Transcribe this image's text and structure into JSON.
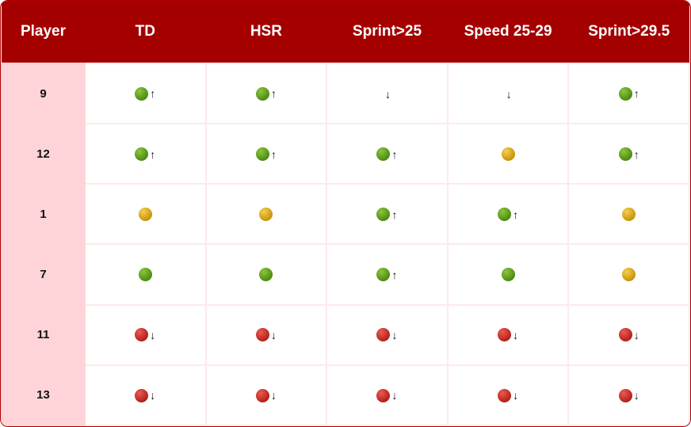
{
  "table": {
    "columns": [
      "Player",
      "TD",
      "HSR",
      "Sprint>25",
      "Speed 25-29",
      "Sprint>29.5"
    ],
    "rows": [
      {
        "player": "9",
        "cells": [
          {
            "status": "green",
            "arrow": "↑"
          },
          {
            "status": "green",
            "arrow": "↑"
          },
          {
            "arrow": "↓"
          },
          {
            "arrow": "↓"
          },
          {
            "status": "green",
            "arrow": "↑"
          }
        ]
      },
      {
        "player": "12",
        "cells": [
          {
            "status": "green",
            "arrow": "↑"
          },
          {
            "status": "green",
            "arrow": "↑"
          },
          {
            "status": "green",
            "arrow": "↑"
          },
          {
            "status": "yellow"
          },
          {
            "status": "green",
            "arrow": "↑"
          }
        ]
      },
      {
        "player": "1",
        "cells": [
          {
            "status": "yellow"
          },
          {
            "status": "yellow"
          },
          {
            "status": "green",
            "arrow": "↑"
          },
          {
            "status": "green",
            "arrow": "↑"
          },
          {
            "status": "yellow"
          }
        ]
      },
      {
        "player": "7",
        "cells": [
          {
            "status": "green"
          },
          {
            "status": "green"
          },
          {
            "status": "green",
            "arrow": "↑"
          },
          {
            "status": "green"
          },
          {
            "status": "yellow"
          }
        ]
      },
      {
        "player": "11",
        "cells": [
          {
            "status": "red",
            "arrow": "↓"
          },
          {
            "status": "red",
            "arrow": "↓"
          },
          {
            "status": "red",
            "arrow": "↓"
          },
          {
            "status": "red",
            "arrow": "↓"
          },
          {
            "status": "red",
            "arrow": "↓"
          }
        ]
      },
      {
        "player": "13",
        "cells": [
          {
            "status": "red",
            "arrow": "↓"
          },
          {
            "status": "red",
            "arrow": "↓"
          },
          {
            "status": "red",
            "arrow": "↓"
          },
          {
            "status": "red",
            "arrow": "↓"
          },
          {
            "status": "red",
            "arrow": "↓"
          }
        ]
      }
    ]
  }
}
